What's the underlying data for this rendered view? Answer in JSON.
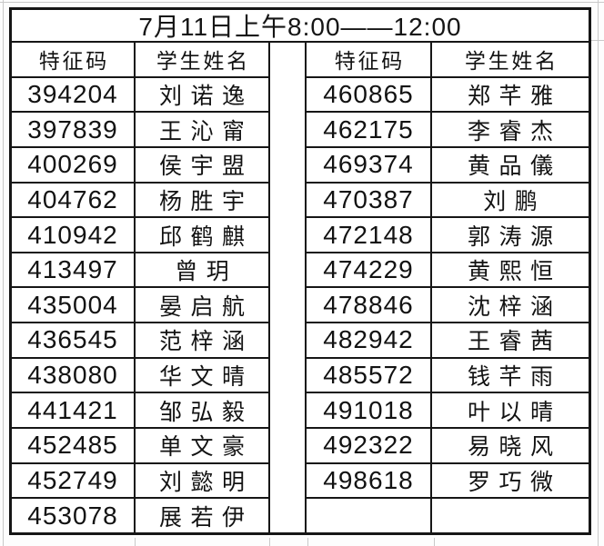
{
  "title": "7月11日上午8:00——12:00",
  "tables": {
    "left": {
      "headers": [
        "特征码",
        "学生姓名"
      ],
      "rows": [
        {
          "code": "394204",
          "name": "刘诺逸"
        },
        {
          "code": "397839",
          "name": "王沁甯"
        },
        {
          "code": "400269",
          "name": "侯宇盟"
        },
        {
          "code": "404762",
          "name": "杨胜宇"
        },
        {
          "code": "410942",
          "name": "邱鹤麒"
        },
        {
          "code": "413497",
          "name": "曾玥"
        },
        {
          "code": "435004",
          "name": "晏启航"
        },
        {
          "code": "436545",
          "name": "范梓涵"
        },
        {
          "code": "438080",
          "name": "华文晴"
        },
        {
          "code": "441421",
          "name": "邹弘毅"
        },
        {
          "code": "452485",
          "name": "单文豪"
        },
        {
          "code": "452749",
          "name": "刘懿明"
        },
        {
          "code": "453078",
          "name": "展若伊"
        }
      ]
    },
    "right": {
      "headers": [
        "特征码",
        "学生姓名"
      ],
      "rows": [
        {
          "code": "460865",
          "name": "郑芊雅"
        },
        {
          "code": "462175",
          "name": "李睿杰"
        },
        {
          "code": "469374",
          "name": "黄品儀"
        },
        {
          "code": "470387",
          "name": "刘鹏"
        },
        {
          "code": "472148",
          "name": "郭涛源"
        },
        {
          "code": "474229",
          "name": "黄熙恒"
        },
        {
          "code": "478846",
          "name": "沈梓涵"
        },
        {
          "code": "482942",
          "name": "王睿茜"
        },
        {
          "code": "485572",
          "name": "钱芊雨"
        },
        {
          "code": "491018",
          "name": "叶以晴"
        },
        {
          "code": "492322",
          "name": "易晓风"
        },
        {
          "code": "498618",
          "name": "罗巧微"
        },
        {
          "code": "",
          "name": ""
        }
      ]
    }
  },
  "colors": {
    "border": "#161616",
    "gridline": "#c9c9c9",
    "text": "#121212",
    "background": "#ffffff"
  }
}
